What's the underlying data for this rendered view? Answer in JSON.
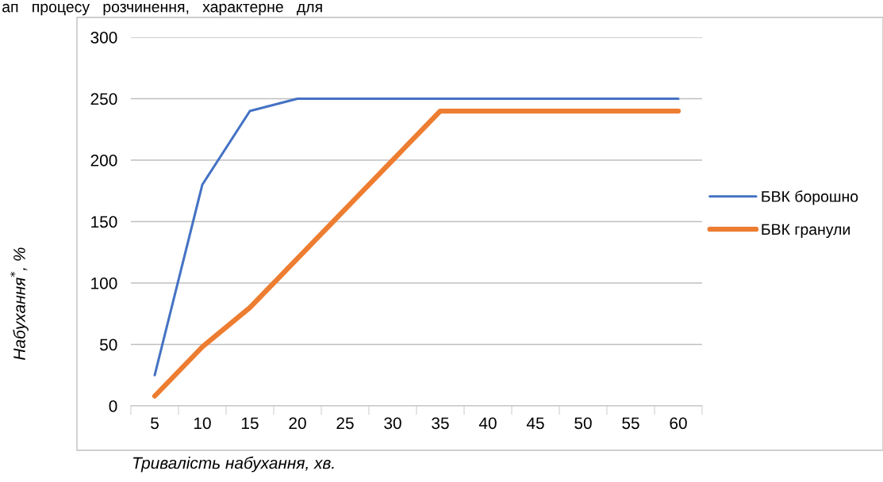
{
  "chart_data": {
    "type": "line",
    "xlabel": "Тривалість набухання, хв.",
    "ylabel": "Набухання$^{*}$, %",
    "annotations": [
      "ап   процесу   розчинення,   характерне   для"
    ],
    "categories": [
      "5",
      "10",
      "15",
      "20",
      "25",
      "30",
      "35",
      "40",
      "45",
      "50",
      "55",
      "60"
    ],
    "series": [
      {
        "name": "БВК борошно",
        "color": "#4472c4",
        "values": [
          25,
          180,
          240,
          250,
          250,
          250,
          250,
          250,
          250,
          250,
          250,
          250
        ]
      },
      {
        "name": "БВК гранули",
        "color": "#ed7d31",
        "values": [
          8,
          48,
          80,
          120,
          160,
          200,
          240,
          240,
          240,
          240,
          240,
          240
        ]
      }
    ],
    "ylim": [
      0,
      300
    ],
    "yticks": [
      0,
      50,
      100,
      150,
      200,
      250,
      300
    ],
    "grid": "y",
    "legend": "right",
    "marker": "none",
    "line_style": "solid"
  }
}
